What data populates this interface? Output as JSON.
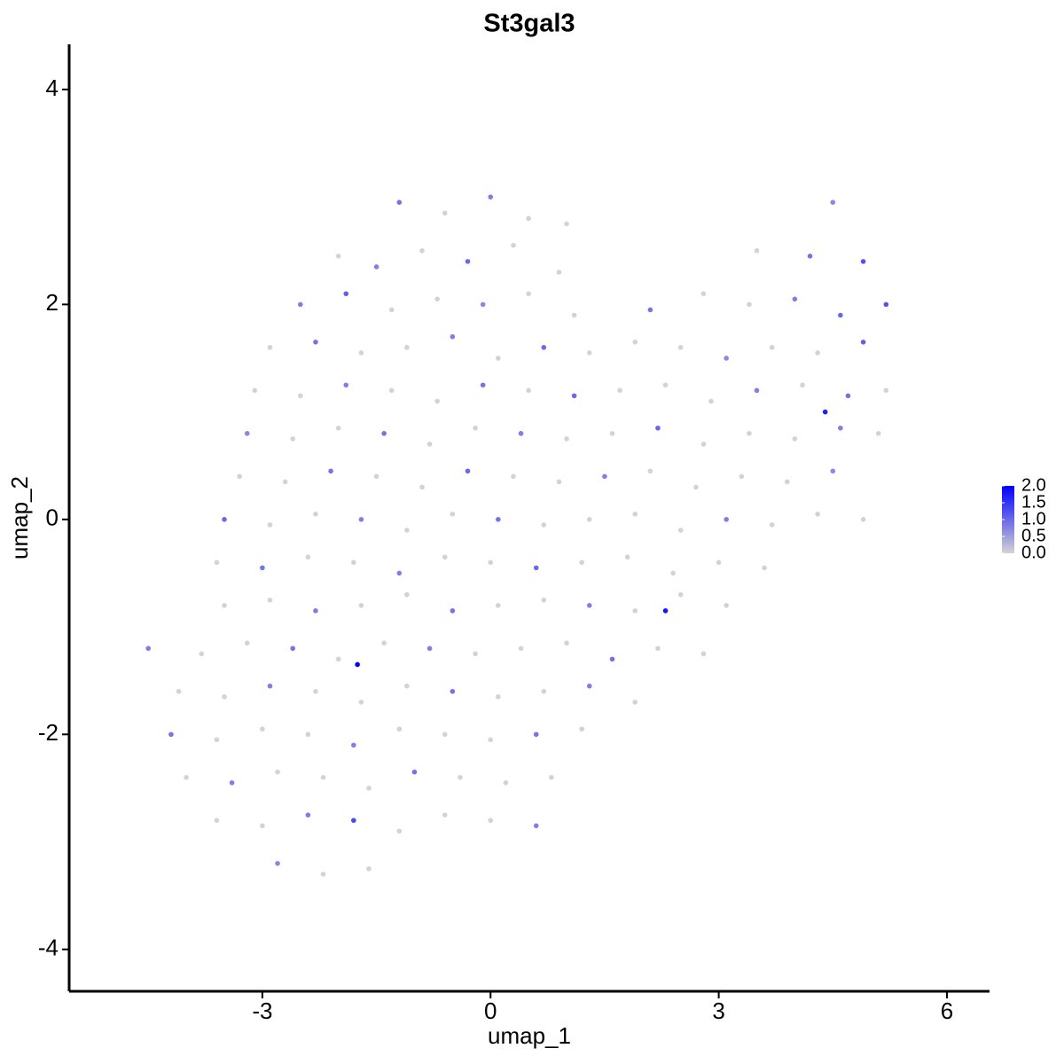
{
  "chart_data": {
    "type": "scatter",
    "title": "St3gal3",
    "x_label": "umap_1",
    "y_label": "umap_2",
    "xlim": [
      -5.54,
      6.56
    ],
    "ylim": [
      -4.39,
      4.42
    ],
    "xticks": [
      -3,
      0,
      3,
      6
    ],
    "yticks": [
      -4,
      -2,
      0,
      2,
      4
    ],
    "color_low": "#d3d3d3",
    "color_high": "#0000ff",
    "clim": [
      0,
      2.0
    ],
    "colorbar_ticks": [
      {
        "value": 2.0,
        "label": "2.0"
      },
      {
        "value": 1.5,
        "label": "1.5"
      },
      {
        "value": 1.0,
        "label": "1.0"
      },
      {
        "value": 0.5,
        "label": "0.5"
      },
      {
        "value": 0,
        "label": "0.0"
      }
    ],
    "x": [
      -1.2,
      -0.6,
      0.0,
      0.5,
      1.0,
      4.5,
      -2.0,
      -1.5,
      -0.9,
      -0.3,
      0.3,
      0.9,
      3.5,
      4.2,
      4.9,
      -2.5,
      -1.9,
      -1.3,
      -0.7,
      -0.1,
      0.5,
      1.1,
      2.1,
      2.8,
      3.4,
      4.0,
      4.6,
      5.2,
      -2.9,
      -2.3,
      -1.7,
      -1.1,
      -0.5,
      0.1,
      0.7,
      1.3,
      1.9,
      2.5,
      3.1,
      3.7,
      4.3,
      4.9,
      -3.1,
      -2.5,
      -1.9,
      -1.3,
      -0.7,
      -0.1,
      0.5,
      1.1,
      1.7,
      2.3,
      2.9,
      3.5,
      4.1,
      4.7,
      5.2,
      -3.2,
      -2.6,
      -2.0,
      -1.4,
      -0.8,
      -0.2,
      0.4,
      1.0,
      1.6,
      2.2,
      2.8,
      3.4,
      4.0,
      4.6,
      5.1,
      -3.3,
      -2.7,
      -2.1,
      -1.5,
      -0.9,
      -0.3,
      0.3,
      0.9,
      1.5,
      2.1,
      2.7,
      3.3,
      3.9,
      4.5,
      -3.5,
      -2.9,
      -2.3,
      -1.7,
      -1.1,
      -0.5,
      0.1,
      0.7,
      1.3,
      1.9,
      2.5,
      3.1,
      3.7,
      4.3,
      4.9,
      -3.6,
      -3.0,
      -2.4,
      -1.8,
      -1.2,
      -0.6,
      0.0,
      0.6,
      1.2,
      1.8,
      2.4,
      3.0,
      3.6,
      -3.5,
      -2.9,
      -2.3,
      -1.7,
      -1.1,
      -0.5,
      0.1,
      0.7,
      1.3,
      1.9,
      2.5,
      3.1,
      -4.5,
      -3.8,
      -3.2,
      -2.6,
      -2.0,
      -1.4,
      -0.8,
      -0.2,
      0.4,
      1.0,
      1.6,
      2.2,
      2.8,
      -4.1,
      -3.5,
      -2.9,
      -2.3,
      -1.7,
      -1.1,
      -0.5,
      0.1,
      0.7,
      1.3,
      1.9,
      -4.2,
      -3.6,
      -3.0,
      -2.4,
      -1.8,
      -1.2,
      -0.6,
      0.0,
      0.6,
      1.2,
      -4.0,
      -3.4,
      -2.8,
      -2.2,
      -1.6,
      -1.0,
      -0.4,
      0.2,
      0.8,
      -3.6,
      -3.0,
      -2.4,
      -1.8,
      -1.2,
      -0.6,
      0.0,
      0.6,
      -2.8,
      -2.2,
      -1.6,
      -1.75,
      2.3,
      4.4
    ],
    "y": [
      2.95,
      2.85,
      3.0,
      2.8,
      2.75,
      2.95,
      2.45,
      2.35,
      2.5,
      2.4,
      2.55,
      2.3,
      2.5,
      2.45,
      2.4,
      2.0,
      2.1,
      1.95,
      2.05,
      2.0,
      2.1,
      1.9,
      1.95,
      2.1,
      2.0,
      2.05,
      1.9,
      2.0,
      1.6,
      1.65,
      1.55,
      1.6,
      1.7,
      1.5,
      1.6,
      1.55,
      1.65,
      1.6,
      1.5,
      1.6,
      1.55,
      1.65,
      1.2,
      1.15,
      1.25,
      1.2,
      1.1,
      1.25,
      1.2,
      1.15,
      1.2,
      1.25,
      1.1,
      1.2,
      1.25,
      1.15,
      1.2,
      0.8,
      0.75,
      0.85,
      0.8,
      0.7,
      0.85,
      0.8,
      0.75,
      0.8,
      0.85,
      0.7,
      0.8,
      0.75,
      0.85,
      0.8,
      0.4,
      0.35,
      0.45,
      0.4,
      0.3,
      0.45,
      0.4,
      0.35,
      0.4,
      0.45,
      0.3,
      0.4,
      0.35,
      0.45,
      0,
      -0.05,
      0.05,
      0,
      -0.1,
      0.05,
      0,
      -0.05,
      0,
      0.05,
      -0.1,
      0,
      -0.05,
      0.05,
      0,
      -0.4,
      -0.45,
      -0.35,
      -0.4,
      -0.5,
      -0.35,
      -0.4,
      -0.45,
      -0.4,
      -0.35,
      -0.5,
      -0.4,
      -0.45,
      -0.8,
      -0.75,
      -0.85,
      -0.8,
      -0.7,
      -0.85,
      -0.8,
      -0.75,
      -0.8,
      -0.85,
      -0.7,
      -0.8,
      -1.2,
      -1.25,
      -1.15,
      -1.2,
      -1.3,
      -1.15,
      -1.2,
      -1.25,
      -1.2,
      -1.15,
      -1.3,
      -1.2,
      -1.25,
      -1.6,
      -1.65,
      -1.55,
      -1.6,
      -1.7,
      -1.55,
      -1.6,
      -1.65,
      -1.6,
      -1.55,
      -1.7,
      -2.0,
      -2.05,
      -1.95,
      -2.0,
      -2.1,
      -1.95,
      -2.0,
      -2.05,
      -2.0,
      -1.95,
      -2.4,
      -2.45,
      -2.35,
      -2.4,
      -2.5,
      -2.35,
      -2.4,
      -2.45,
      -2.4,
      -2.8,
      -2.85,
      -2.75,
      -2.8,
      -2.9,
      -2.75,
      -2.8,
      -2.85,
      -3.2,
      -3.3,
      -3.25,
      -1.35,
      -0.85,
      1.0
    ],
    "values": [
      0.9,
      0,
      0.8,
      0,
      0,
      0.7,
      0,
      0.8,
      0,
      1.0,
      0,
      0,
      0,
      0.9,
      1.2,
      0.8,
      1.1,
      0,
      0,
      0.7,
      0,
      0,
      0.9,
      0,
      0,
      0.8,
      1.0,
      1.2,
      0,
      0.9,
      0,
      0,
      0.8,
      0,
      1.0,
      0,
      0,
      0,
      0.7,
      0,
      0,
      1.1,
      0,
      0,
      0.8,
      0,
      0,
      0.9,
      0,
      1.0,
      0,
      0,
      0,
      0.8,
      0,
      0.9,
      0,
      0.7,
      0,
      0,
      0.9,
      0,
      0,
      0.8,
      0,
      0,
      1.0,
      0,
      0,
      0,
      0.8,
      0,
      0,
      0,
      0.9,
      0,
      0,
      1.0,
      0,
      0,
      0.8,
      0,
      0,
      0,
      0,
      0.7,
      1.0,
      0,
      0,
      0.8,
      0,
      0,
      0.9,
      0,
      0,
      0,
      0,
      0.8,
      0,
      0,
      0,
      0,
      0.9,
      0,
      0,
      0.8,
      0,
      0,
      1.0,
      0,
      0,
      0,
      0,
      0,
      0,
      0,
      0.8,
      0,
      0,
      0.9,
      0,
      0,
      0.8,
      0,
      0,
      0,
      0.8,
      0,
      0,
      0.9,
      0,
      0,
      0.8,
      0,
      0,
      0,
      0.9,
      0,
      0,
      0,
      0,
      0.8,
      0,
      0,
      0,
      0.9,
      0,
      0,
      0.8,
      0,
      0.9,
      0,
      0,
      0,
      0.8,
      0,
      0,
      0,
      0.9,
      0,
      0,
      0.8,
      0,
      0,
      0,
      0.9,
      0,
      0,
      0,
      0,
      0,
      0.8,
      1.3,
      0,
      0,
      0,
      0.8,
      0.7,
      0,
      0,
      2.0,
      1.8,
      1.7
    ]
  }
}
